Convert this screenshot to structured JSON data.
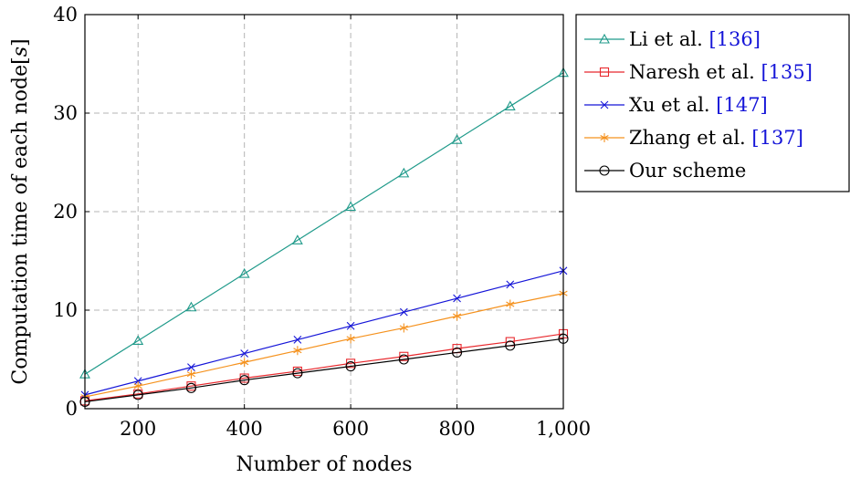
{
  "chart_data": {
    "type": "line",
    "xlabel": "Number of nodes",
    "ylabel": "Computation time of each node[s]",
    "xlim": [
      100,
      1000
    ],
    "ylim": [
      0,
      40
    ],
    "xticks": [
      200,
      400,
      600,
      800,
      1000
    ],
    "xtick_labels": [
      "200",
      "400",
      "600",
      "800",
      "1,000"
    ],
    "yticks": [
      0,
      10,
      20,
      30,
      40
    ],
    "ytick_labels": [
      "0",
      "10",
      "20",
      "30",
      "40"
    ],
    "grid": true,
    "legend_position": "outside-right-top",
    "x": [
      100,
      200,
      300,
      400,
      500,
      600,
      700,
      800,
      900,
      1000
    ],
    "series": [
      {
        "name": "Li et al.",
        "ref": "[136]",
        "color": "#1f9a8a",
        "marker": "triangle",
        "values": [
          3.5,
          6.9,
          10.3,
          13.7,
          17.1,
          20.5,
          23.9,
          27.3,
          30.7,
          34.1
        ]
      },
      {
        "name": "Naresh et al.",
        "ref": "[135]",
        "color": "#e8282d",
        "marker": "square",
        "values": [
          0.8,
          1.5,
          2.3,
          3.1,
          3.8,
          4.6,
          5.3,
          6.1,
          6.8,
          7.6
        ]
      },
      {
        "name": "Xu et al.",
        "ref": "[147]",
        "color": "#1515d8",
        "marker": "x",
        "values": [
          1.4,
          2.8,
          4.2,
          5.6,
          7.0,
          8.4,
          9.8,
          11.2,
          12.6,
          14.0
        ]
      },
      {
        "name": "Zhang et al.",
        "ref": "[137]",
        "color": "#f5921e",
        "marker": "star",
        "values": [
          1.2,
          2.3,
          3.5,
          4.7,
          5.9,
          7.1,
          8.2,
          9.4,
          10.6,
          11.7
        ]
      },
      {
        "name": "Our scheme",
        "ref": "",
        "color": "#000000",
        "marker": "circle",
        "values": [
          0.7,
          1.4,
          2.1,
          2.9,
          3.6,
          4.3,
          5.0,
          5.7,
          6.4,
          7.1
        ]
      }
    ]
  }
}
